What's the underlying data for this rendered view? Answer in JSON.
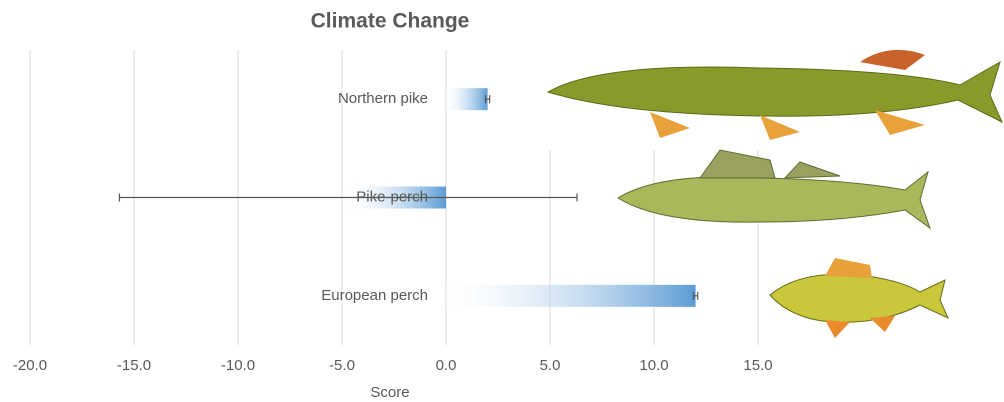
{
  "chart_data": {
    "type": "bar",
    "orientation": "horizontal",
    "title": "Climate Change",
    "x_label": "Score",
    "categories": [
      "Northern pike",
      "Pike-perch",
      "European perch"
    ],
    "values": [
      2.0,
      -4.7,
      12.0
    ],
    "errors": [
      0.1,
      11.0,
      0.1
    ],
    "color": "#5b9bd5",
    "xlim": [
      -20,
      20
    ],
    "xticks": [
      {
        "value": -20,
        "label": "-20.0"
      },
      {
        "value": -15,
        "label": "-15.0"
      },
      {
        "value": -10,
        "label": "-10.0"
      },
      {
        "value": -5,
        "label": "-5.0"
      },
      {
        "value": 0,
        "label": "0.0"
      },
      {
        "value": 5,
        "label": "5.0"
      },
      {
        "value": 10,
        "label": "10.0"
      },
      {
        "value": 15,
        "label": "15.0"
      }
    ],
    "grid": true
  }
}
